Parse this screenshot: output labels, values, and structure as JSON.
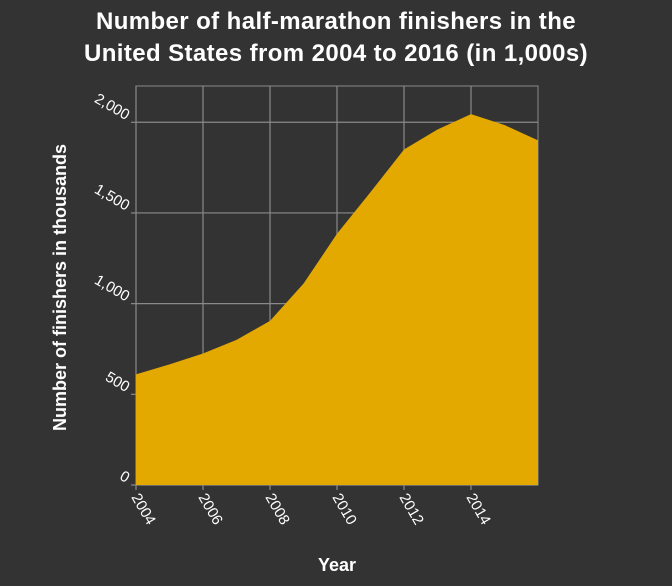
{
  "chart_data": {
    "type": "area",
    "title_lines": [
      "Number of half-marathon finishers in the",
      "United States from 2004 to 2016 (in 1,000s)"
    ],
    "xlabel": "Year",
    "ylabel": "Number of finishers in thousands",
    "x": [
      2004,
      2005,
      2006,
      2007,
      2008,
      2009,
      2010,
      2011,
      2012,
      2013,
      2014,
      2015,
      2016
    ],
    "values": [
      610,
      665,
      725,
      800,
      905,
      1110,
      1385,
      1615,
      1850,
      1960,
      2045,
      1985,
      1900
    ],
    "xlim": [
      2004,
      2016
    ],
    "ylim": [
      0,
      2200
    ],
    "xticks": [
      2004,
      2006,
      2008,
      2010,
      2012,
      2014
    ],
    "xtick_labels": [
      "2004",
      "2006",
      "2008",
      "2010",
      "2012",
      "2014"
    ],
    "yticks": [
      0,
      500,
      1000,
      1500,
      2000
    ],
    "ytick_labels": [
      "0",
      "500",
      "1,000",
      "1,500",
      "2,000"
    ],
    "grid": true,
    "colors": {
      "background": "#333333",
      "plot_background": "#333333",
      "fill": "#e4a900",
      "grid": "#8a8a8a",
      "text": "#ffffff"
    }
  }
}
